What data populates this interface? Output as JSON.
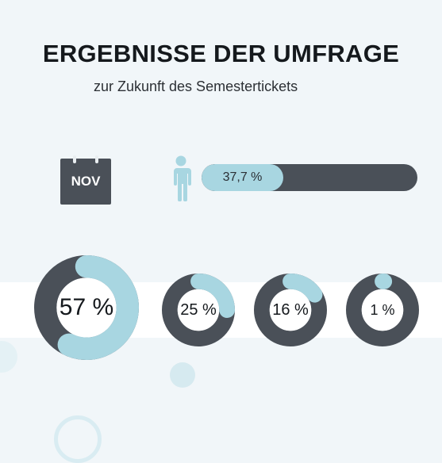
{
  "header": {
    "title": "ERGEBNISSE DER UMFRAGE",
    "subtitle": "zur Zukunft des Semestertickets"
  },
  "calendar": {
    "label": "NOV",
    "icon": "calendar-icon"
  },
  "person": {
    "icon": "person-icon"
  },
  "bar": {
    "label": "37,7 %",
    "value": 37.7
  },
  "donuts": [
    {
      "label": "57 %",
      "value": 57
    },
    {
      "label": "25 %",
      "value": 25
    },
    {
      "label": "16 %",
      "value": 16
    },
    {
      "label": "1 %",
      "value": 1
    }
  ],
  "colors": {
    "accent": "#a8d6e1",
    "dark": "#4a5058",
    "background": "#f1f6f9"
  },
  "chart_data": [
    {
      "type": "bar",
      "values": [
        37.7
      ],
      "xlim": [
        0,
        100
      ]
    },
    {
      "type": "pie",
      "values": [
        57,
        25,
        16,
        1
      ]
    }
  ]
}
